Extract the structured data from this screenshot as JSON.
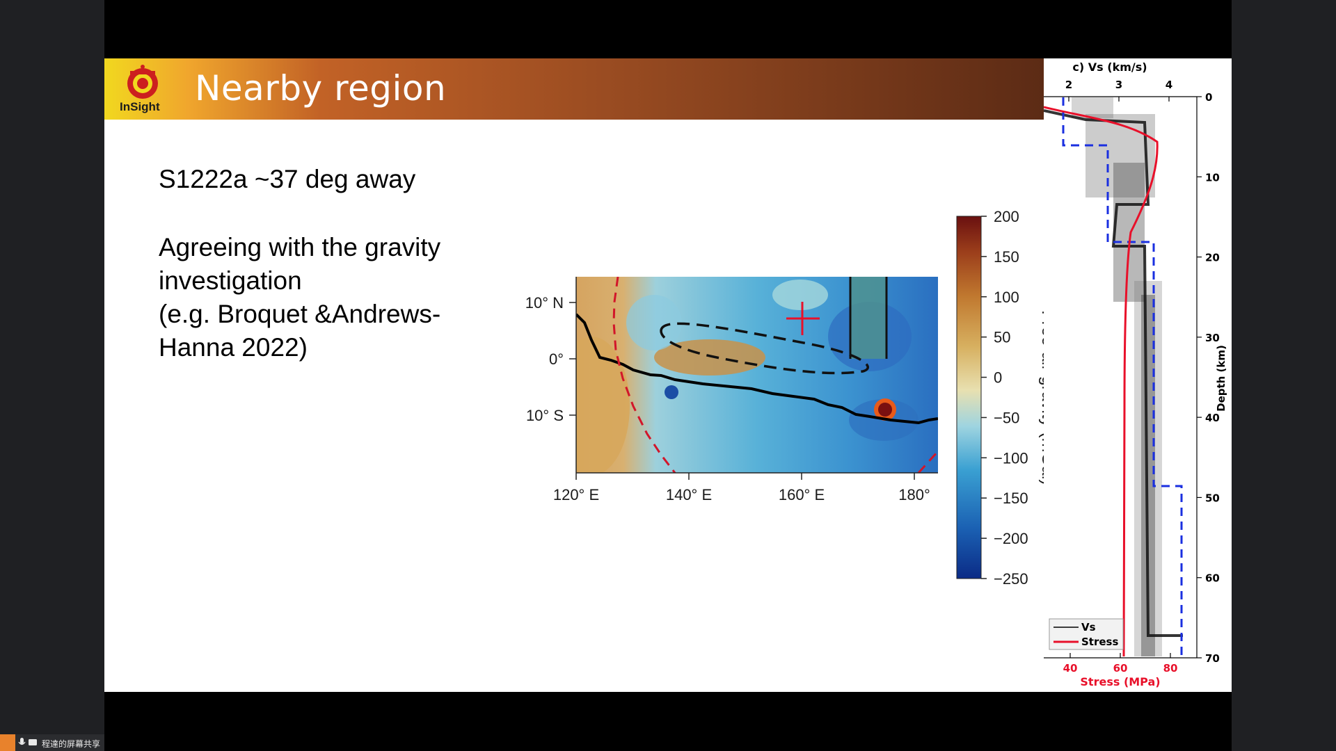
{
  "slide": {
    "title": "Nearby region",
    "logo_text": "InSight",
    "paragraph1": "S1222a ~37 deg away",
    "paragraph2_lines": [
      "Agreeing with the gravity",
      "investigation",
      "(e.g. Broquet &Andrews-",
      "Hanna 2022)"
    ]
  },
  "gravity_map": {
    "lat_ticks": [
      "10° N",
      "0°",
      "10° S"
    ],
    "lon_ticks": [
      "120° E",
      "140° E",
      "160° E",
      "180°"
    ],
    "colorbar_ticks": [
      "200",
      "150",
      "100",
      "50",
      "0",
      "−50",
      "−100",
      "−150",
      "−200",
      "−250"
    ],
    "colorbar_label": "Free-air gravity (mGal)"
  },
  "chart_data": {
    "type": "line",
    "title": "c) Vs (km/s)",
    "x_top_label": "Vs (km/s)",
    "x_top_ticks": [
      "2",
      "3",
      "4"
    ],
    "x_bottom_label": "Stress (MPa)",
    "x_bottom_ticks": [
      "40",
      "60",
      "80"
    ],
    "ylabel": "Depth (km)",
    "y_ticks": [
      "0",
      "10",
      "20",
      "30",
      "40",
      "50",
      "60",
      "70"
    ],
    "ylim": [
      0,
      70
    ],
    "legend": [
      "Vs",
      "Stress"
    ],
    "series": [
      {
        "name": "Vs",
        "color": "#000000"
      },
      {
        "name": "Stress",
        "color": "#e8102a"
      }
    ]
  },
  "screenshare": {
    "label": "程達的屏幕共享"
  },
  "colors": {
    "accent_red": "#e8102a",
    "dashed_blue": "#1a2fe0"
  }
}
